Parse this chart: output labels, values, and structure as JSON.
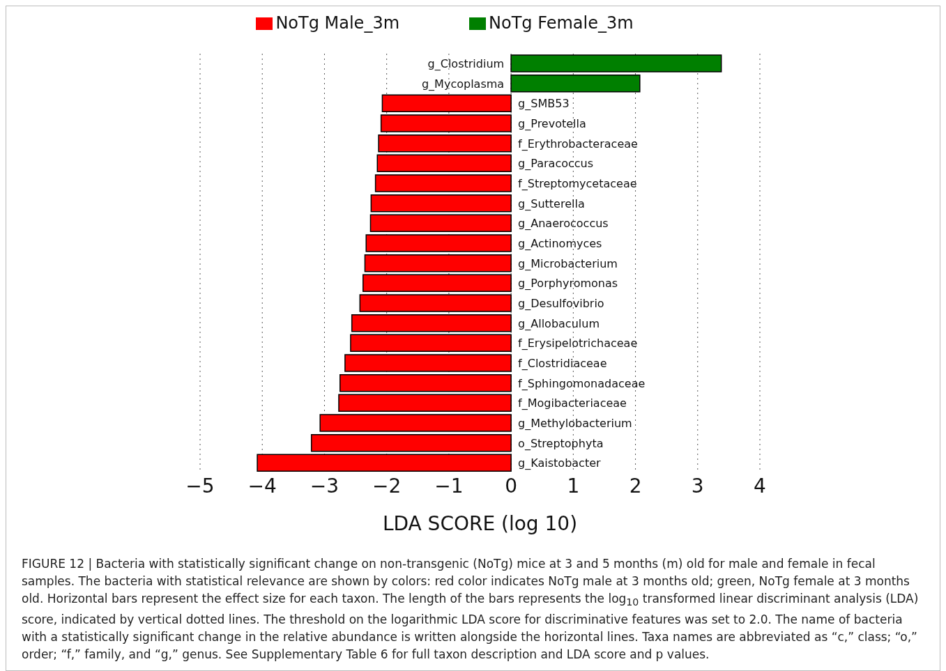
{
  "chart_data": {
    "type": "bar",
    "orientation": "horizontal",
    "xlabel": "LDA SCORE (log 10)",
    "categories": [
      "g_Clostridium",
      "g_Mycoplasma",
      "g_SMB53",
      "g_Prevotella",
      "f_Erythrobacteraceae",
      "g_Paracoccus",
      "f_Streptomycetaceae",
      "g_Sutterella",
      "g_Anaerococcus",
      "g_Actinomyces",
      "g_Microbacterium",
      "g_Porphyromonas",
      "g_Desulfovibrio",
      "g_Allobaculum",
      "f_Erysipelotrichaceae",
      "f_Clostridiaceae",
      "f_Sphingomonadaceae",
      "f_Mogibacteriaceae",
      "g_Methylobacterium",
      "o_Streptophyta",
      "g_Kaistobacter"
    ],
    "series": [
      {
        "name": "NoTg Male_3m",
        "color": "#ff0000",
        "values": [
          null,
          null,
          -2.07,
          -2.09,
          -2.13,
          -2.15,
          -2.18,
          -2.25,
          -2.26,
          -2.33,
          -2.35,
          -2.38,
          -2.43,
          -2.56,
          -2.58,
          -2.67,
          -2.75,
          -2.77,
          -3.07,
          -3.21,
          -4.08
        ]
      },
      {
        "name": "NoTg Female_3m",
        "color": "#007f00",
        "values": [
          3.38,
          2.07,
          null,
          null,
          null,
          null,
          null,
          null,
          null,
          null,
          null,
          null,
          null,
          null,
          null,
          null,
          null,
          null,
          null,
          null,
          null
        ]
      }
    ],
    "xlim": [
      -5,
      4
    ],
    "xticks": [
      -5,
      -4,
      -3,
      -2,
      -1,
      0,
      1,
      2,
      3,
      4
    ],
    "grid": "x",
    "legend": "top",
    "annotations": [
      "FIGURE 12 | Bacteria with statistically significant change on non-transgenic (NoTg) mice at 3 and 5 months (m) old for male and female in fecal samples. The bacteria with statistical relevance are shown by colors: red color indicates NoTg male at 3 months old; green, NoTg female at 3 months old. Horizontal bars represent the effect size for each taxon. The length of the bars represents the log$_{10}$ transformed linear discriminant analysis (LDA) score, indicated by vertical dotted lines. The threshold on the logarithmic LDA score for discriminative features was set to 2.0. The name of bacteria with a statistically significant change in the relative abundance is written alongside the horizontal lines. Taxa names are abbreviated as “c,” class; “o,” order; “f,” family, and “g,” genus. See Supplementary Table 6 for full taxon description and LDA score and p values."
    ]
  }
}
